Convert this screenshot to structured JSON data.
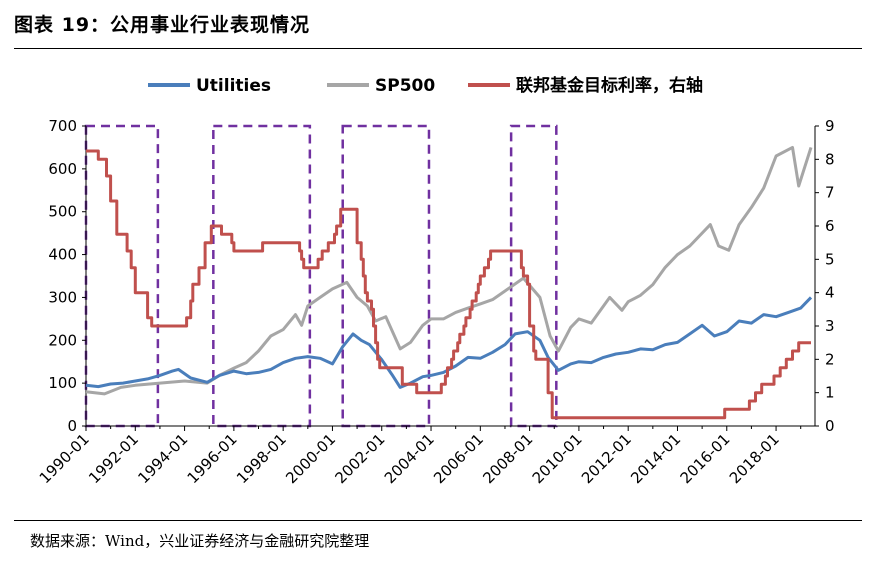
{
  "header": {
    "title": "图表 19：公用事业行业表现情况"
  },
  "footer": {
    "source": "数据来源：Wind，兴业证券经济与金融研究院整理"
  },
  "colors": {
    "utilities": "#4a7ebb",
    "sp500": "#a6a6a6",
    "fed": "#c0504d",
    "recession": "#7030a0"
  },
  "chart_data": {
    "type": "line",
    "title": "",
    "xlabel": "",
    "ylabel": "",
    "ylim": [
      0,
      700
    ],
    "y2lim": [
      0,
      9
    ],
    "x_tick_labels": [
      "1990-01",
      "1992-01",
      "1994-01",
      "1996-01",
      "1998-01",
      "2000-01",
      "2002-01",
      "2004-01",
      "2006-01",
      "2008-01",
      "2010-01",
      "2012-01",
      "2014-01",
      "2016-01",
      "2018-01"
    ],
    "y_tick_labels": [
      "0",
      "100",
      "200",
      "300",
      "400",
      "500",
      "600",
      "700"
    ],
    "y2_tick_labels": [
      "0",
      "1",
      "2",
      "3",
      "4",
      "5",
      "6",
      "7",
      "8",
      "9"
    ],
    "legend": {
      "position": "top",
      "entries": [
        "Utilities",
        "SP500",
        "联邦基金目标利率，右轴"
      ]
    },
    "series": [
      {
        "name": "Utilities",
        "axis": "left",
        "points": [
          [
            "1990-01",
            95
          ],
          [
            "1990-07",
            92
          ],
          [
            "1991-01",
            98
          ],
          [
            "1991-07",
            100
          ],
          [
            "1992-01",
            105
          ],
          [
            "1992-07",
            110
          ],
          [
            "1993-01",
            118
          ],
          [
            "1993-07",
            128
          ],
          [
            "1993-10",
            132
          ],
          [
            "1994-04",
            112
          ],
          [
            "1994-12",
            102
          ],
          [
            "1995-06",
            118
          ],
          [
            "1996-01",
            128
          ],
          [
            "1996-07",
            122
          ],
          [
            "1997-01",
            125
          ],
          [
            "1997-07",
            132
          ],
          [
            "1998-01",
            148
          ],
          [
            "1998-07",
            158
          ],
          [
            "1999-01",
            162
          ],
          [
            "1999-07",
            158
          ],
          [
            "2000-01",
            145
          ],
          [
            "2000-06",
            185
          ],
          [
            "2000-11",
            215
          ],
          [
            "2001-03",
            200
          ],
          [
            "2001-07",
            190
          ],
          [
            "2002-01",
            155
          ],
          [
            "2002-06",
            120
          ],
          [
            "2002-10",
            90
          ],
          [
            "2003-03",
            100
          ],
          [
            "2003-09",
            115
          ],
          [
            "2004-01",
            118
          ],
          [
            "2004-07",
            125
          ],
          [
            "2005-01",
            140
          ],
          [
            "2005-07",
            160
          ],
          [
            "2006-01",
            158
          ],
          [
            "2006-07",
            172
          ],
          [
            "2007-01",
            190
          ],
          [
            "2007-06",
            215
          ],
          [
            "2007-12",
            220
          ],
          [
            "2008-06",
            200
          ],
          [
            "2008-10",
            160
          ],
          [
            "2009-03",
            130
          ],
          [
            "2009-09",
            145
          ],
          [
            "2010-01",
            150
          ],
          [
            "2010-07",
            148
          ],
          [
            "2011-01",
            160
          ],
          [
            "2011-07",
            168
          ],
          [
            "2012-01",
            172
          ],
          [
            "2012-07",
            180
          ],
          [
            "2013-01",
            178
          ],
          [
            "2013-07",
            190
          ],
          [
            "2014-01",
            195
          ],
          [
            "2014-07",
            215
          ],
          [
            "2015-01",
            235
          ],
          [
            "2015-07",
            210
          ],
          [
            "2016-01",
            220
          ],
          [
            "2016-07",
            245
          ],
          [
            "2017-01",
            240
          ],
          [
            "2017-07",
            260
          ],
          [
            "2018-01",
            255
          ],
          [
            "2018-07",
            265
          ],
          [
            "2019-01",
            275
          ],
          [
            "2019-06",
            300
          ]
        ]
      },
      {
        "name": "SP500",
        "axis": "left",
        "points": [
          [
            "1990-01",
            80
          ],
          [
            "1990-10",
            75
          ],
          [
            "1991-06",
            90
          ],
          [
            "1992-01",
            95
          ],
          [
            "1993-01",
            100
          ],
          [
            "1994-01",
            105
          ],
          [
            "1994-12",
            100
          ],
          [
            "1995-06",
            118
          ],
          [
            "1996-01",
            135
          ],
          [
            "1996-07",
            148
          ],
          [
            "1997-01",
            175
          ],
          [
            "1997-07",
            210
          ],
          [
            "1998-01",
            225
          ],
          [
            "1998-07",
            260
          ],
          [
            "1998-10",
            235
          ],
          [
            "1999-01",
            280
          ],
          [
            "1999-07",
            300
          ],
          [
            "2000-01",
            320
          ],
          [
            "2000-08",
            335
          ],
          [
            "2001-01",
            300
          ],
          [
            "2001-06",
            280
          ],
          [
            "2001-10",
            245
          ],
          [
            "2002-03",
            255
          ],
          [
            "2002-10",
            180
          ],
          [
            "2003-03",
            195
          ],
          [
            "2003-09",
            235
          ],
          [
            "2004-01",
            250
          ],
          [
            "2004-07",
            250
          ],
          [
            "2005-01",
            265
          ],
          [
            "2005-07",
            275
          ],
          [
            "2006-01",
            285
          ],
          [
            "2006-07",
            295
          ],
          [
            "2007-01",
            315
          ],
          [
            "2007-10",
            345
          ],
          [
            "2008-06",
            300
          ],
          [
            "2008-11",
            210
          ],
          [
            "2009-03",
            175
          ],
          [
            "2009-09",
            230
          ],
          [
            "2010-01",
            250
          ],
          [
            "2010-07",
            240
          ],
          [
            "2011-04",
            300
          ],
          [
            "2011-10",
            270
          ],
          [
            "2012-01",
            290
          ],
          [
            "2012-07",
            305
          ],
          [
            "2013-01",
            330
          ],
          [
            "2013-07",
            370
          ],
          [
            "2014-01",
            400
          ],
          [
            "2014-07",
            420
          ],
          [
            "2015-05",
            470
          ],
          [
            "2015-09",
            420
          ],
          [
            "2016-02",
            410
          ],
          [
            "2016-07",
            470
          ],
          [
            "2017-01",
            510
          ],
          [
            "2017-07",
            555
          ],
          [
            "2018-01",
            630
          ],
          [
            "2018-09",
            650
          ],
          [
            "2018-12",
            560
          ],
          [
            "2019-06",
            650
          ]
        ]
      },
      {
        "name": "联邦基金目标利率，右轴",
        "axis": "right",
        "step": true,
        "points": [
          [
            "1990-01",
            8.25
          ],
          [
            "1990-07",
            8.0
          ],
          [
            "1990-11",
            7.5
          ],
          [
            "1991-01",
            6.75
          ],
          [
            "1991-04",
            5.75
          ],
          [
            "1991-09",
            5.25
          ],
          [
            "1991-11",
            4.75
          ],
          [
            "1992-01",
            4.0
          ],
          [
            "1992-07",
            3.25
          ],
          [
            "1992-09",
            3.0
          ],
          [
            "1994-02",
            3.25
          ],
          [
            "1994-04",
            3.75
          ],
          [
            "1994-05",
            4.25
          ],
          [
            "1994-08",
            4.75
          ],
          [
            "1994-11",
            5.5
          ],
          [
            "1995-02",
            6.0
          ],
          [
            "1995-07",
            5.75
          ],
          [
            "1995-12",
            5.5
          ],
          [
            "1996-01",
            5.25
          ],
          [
            "1997-03",
            5.5
          ],
          [
            "1998-09",
            5.25
          ],
          [
            "1998-10",
            5.0
          ],
          [
            "1998-11",
            4.75
          ],
          [
            "1999-06",
            5.0
          ],
          [
            "1999-08",
            5.25
          ],
          [
            "1999-11",
            5.5
          ],
          [
            "2000-02",
            5.75
          ],
          [
            "2000-03",
            6.0
          ],
          [
            "2000-05",
            6.5
          ],
          [
            "2001-01",
            5.5
          ],
          [
            "2001-03",
            5.0
          ],
          [
            "2001-04",
            4.5
          ],
          [
            "2001-05",
            4.0
          ],
          [
            "2001-06",
            3.75
          ],
          [
            "2001-08",
            3.5
          ],
          [
            "2001-09",
            3.0
          ],
          [
            "2001-10",
            2.5
          ],
          [
            "2001-11",
            2.0
          ],
          [
            "2001-12",
            1.75
          ],
          [
            "2002-11",
            1.25
          ],
          [
            "2003-06",
            1.0
          ],
          [
            "2004-06",
            1.25
          ],
          [
            "2004-08",
            1.5
          ],
          [
            "2004-09",
            1.75
          ],
          [
            "2004-11",
            2.0
          ],
          [
            "2004-12",
            2.25
          ],
          [
            "2005-02",
            2.5
          ],
          [
            "2005-03",
            2.75
          ],
          [
            "2005-05",
            3.0
          ],
          [
            "2005-06",
            3.25
          ],
          [
            "2005-08",
            3.5
          ],
          [
            "2005-09",
            3.75
          ],
          [
            "2005-11",
            4.0
          ],
          [
            "2005-12",
            4.25
          ],
          [
            "2006-01",
            4.5
          ],
          [
            "2006-03",
            4.75
          ],
          [
            "2006-05",
            5.0
          ],
          [
            "2006-06",
            5.25
          ],
          [
            "2007-09",
            4.75
          ],
          [
            "2007-10",
            4.5
          ],
          [
            "2007-12",
            4.25
          ],
          [
            "2008-01",
            3.0
          ],
          [
            "2008-03",
            2.25
          ],
          [
            "2008-04",
            2.0
          ],
          [
            "2008-10",
            1.0
          ],
          [
            "2008-12",
            0.25
          ],
          [
            "2015-12",
            0.5
          ],
          [
            "2016-12",
            0.75
          ],
          [
            "2017-03",
            1.0
          ],
          [
            "2017-06",
            1.25
          ],
          [
            "2017-12",
            1.5
          ],
          [
            "2018-03",
            1.75
          ],
          [
            "2018-06",
            2.0
          ],
          [
            "2018-09",
            2.25
          ],
          [
            "2018-12",
            2.5
          ],
          [
            "2019-06",
            2.5
          ]
        ]
      }
    ],
    "recession_bands": [
      [
        "1990-01",
        "1992-12"
      ],
      [
        "1995-03",
        "1999-02"
      ],
      [
        "2000-06",
        "2003-12"
      ],
      [
        "2007-04",
        "2009-02"
      ]
    ]
  }
}
